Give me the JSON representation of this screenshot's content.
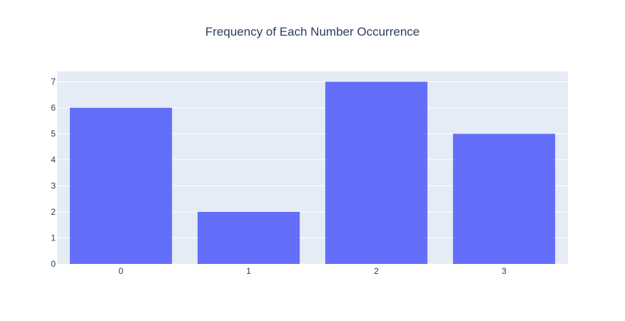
{
  "chart_data": {
    "type": "bar",
    "title": "Frequency of Each Number Occurrence",
    "xlabel": "",
    "ylabel": "",
    "categories": [
      "0",
      "1",
      "2",
      "3"
    ],
    "values": [
      6,
      2,
      7,
      5
    ],
    "ylim": [
      0,
      7.4
    ],
    "yticks": [
      0,
      1,
      2,
      3,
      4,
      5,
      6,
      7
    ],
    "grid": true,
    "legend": false,
    "colors": {
      "bar": "#636efa",
      "plot_background": "#e5ecf6",
      "grid": "#ffffff",
      "text": "#2a3f5f"
    }
  }
}
